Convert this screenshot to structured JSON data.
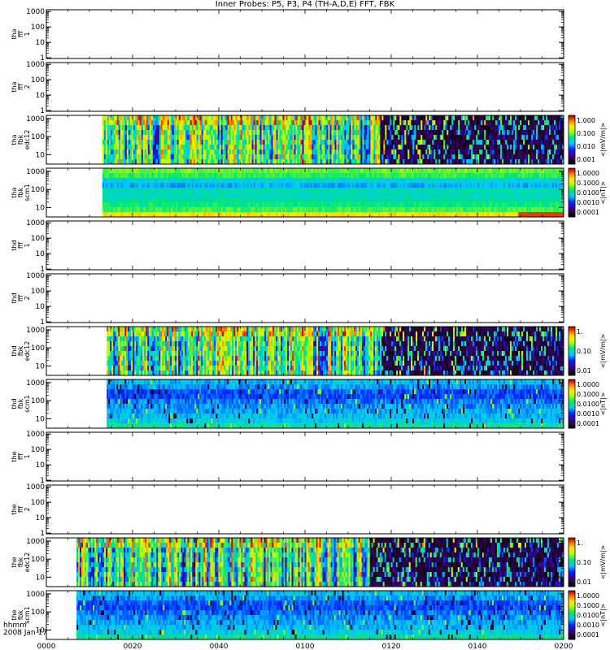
{
  "title": "Inner Probes: P5, P3, P4 (TH-A,D,E) FFT, FBK",
  "x_axis": {
    "label_line1": "hhmm",
    "label_line2": "2008 Jan 17",
    "ticks": [
      "0000",
      "0020",
      "0040",
      "0100",
      "0120",
      "0140",
      "0200"
    ]
  },
  "chart_data": [
    {
      "type": "heatmap",
      "ylabel": [
        "tha",
        "fff",
        "1"
      ],
      "yticks": [
        "1000",
        "100",
        "10",
        "1"
      ],
      "ylim": [
        1,
        1000
      ],
      "yscale": "log",
      "data": "none"
    },
    {
      "type": "heatmap",
      "ylabel": [
        "tha",
        "fff",
        "2"
      ],
      "yticks": [
        "1000",
        "100",
        "10",
        "1"
      ],
      "ylim": [
        1,
        1000
      ],
      "yscale": "log",
      "data": "none"
    },
    {
      "type": "heatmap",
      "ylabel": [
        "tha",
        "fbk",
        "edc12"
      ],
      "yticks": [
        "1000",
        "100",
        "10"
      ],
      "yscale": "log",
      "data_start": "0013",
      "data_end": "0200",
      "colorbar": {
        "label": "<|mV/m|>",
        "ticks": [
          "1.000",
          "0.100",
          "0.010",
          "0.001"
        ]
      },
      "pattern": "strong"
    },
    {
      "type": "heatmap",
      "ylabel": [
        "tha",
        "fbk",
        "scm1"
      ],
      "yticks": [
        "1000",
        "100",
        "10"
      ],
      "yscale": "log",
      "data_start": "0013",
      "data_end": "0200",
      "colorbar": {
        "label": "<|nT|>",
        "ticks": [
          "1.0000",
          "0.1000",
          "0.0100",
          "0.0010",
          "0.0001"
        ]
      },
      "pattern": "banded"
    },
    {
      "type": "heatmap",
      "ylabel": [
        "thd",
        "fff",
        "1"
      ],
      "yticks": [
        "1000",
        "100",
        "10",
        "1"
      ],
      "ylim": [
        1,
        1000
      ],
      "yscale": "log",
      "data": "none"
    },
    {
      "type": "heatmap",
      "ylabel": [
        "thd",
        "fff",
        "2"
      ],
      "yticks": [
        "1000",
        "100",
        "10",
        "1"
      ],
      "ylim": [
        1,
        1000
      ],
      "yscale": "log",
      "data": "none"
    },
    {
      "type": "heatmap",
      "ylabel": [
        "thd",
        "fbk",
        "edc12"
      ],
      "yticks": [
        "1000",
        "100",
        "10"
      ],
      "yscale": "log",
      "data_start": "0014",
      "data_end": "0200",
      "colorbar": {
        "label": "<|mV/m|>",
        "ticks": [
          "1.",
          "0.10",
          "0.01"
        ]
      },
      "pattern": "strong"
    },
    {
      "type": "heatmap",
      "ylabel": [
        "thd",
        "fbk",
        "scm1"
      ],
      "yticks": [
        "1000",
        "100",
        "10"
      ],
      "yscale": "log",
      "data_start": "0014",
      "data_end": "0200",
      "colorbar": {
        "label": "<|nT|>",
        "ticks": [
          "1.0000",
          "0.1000",
          "0.0100",
          "0.0010",
          "0.0001"
        ]
      },
      "pattern": "blue"
    },
    {
      "type": "heatmap",
      "ylabel": [
        "the",
        "fff",
        "1"
      ],
      "yticks": [
        "1000",
        "100",
        "10",
        "1"
      ],
      "ylim": [
        1,
        1000
      ],
      "yscale": "log",
      "data": "none"
    },
    {
      "type": "heatmap",
      "ylabel": [
        "the",
        "fff",
        "2"
      ],
      "yticks": [
        "1000",
        "100",
        "10",
        "1"
      ],
      "ylim": [
        1,
        1000
      ],
      "yscale": "log",
      "data": "none"
    },
    {
      "type": "heatmap",
      "ylabel": [
        "the",
        "fbk",
        "edc12"
      ],
      "yticks": [
        "1000",
        "100",
        "10"
      ],
      "yscale": "log",
      "data_start": "0007",
      "data_end": "0200",
      "colorbar": {
        "label": "<|mV/m|>",
        "ticks": [
          "1.",
          "0.10",
          "0.01"
        ]
      },
      "pattern": "strong"
    },
    {
      "type": "heatmap",
      "ylabel": [
        "the",
        "fbk",
        "scm1"
      ],
      "yticks": [
        "1000",
        "100",
        "10"
      ],
      "yscale": "log",
      "data_start": "0007",
      "data_end": "0200",
      "colorbar": {
        "label": "<|nT|>",
        "ticks": [
          "1.0000",
          "0.1000",
          "0.0100",
          "0.0010",
          "0.0001"
        ]
      },
      "pattern": "blue"
    }
  ]
}
